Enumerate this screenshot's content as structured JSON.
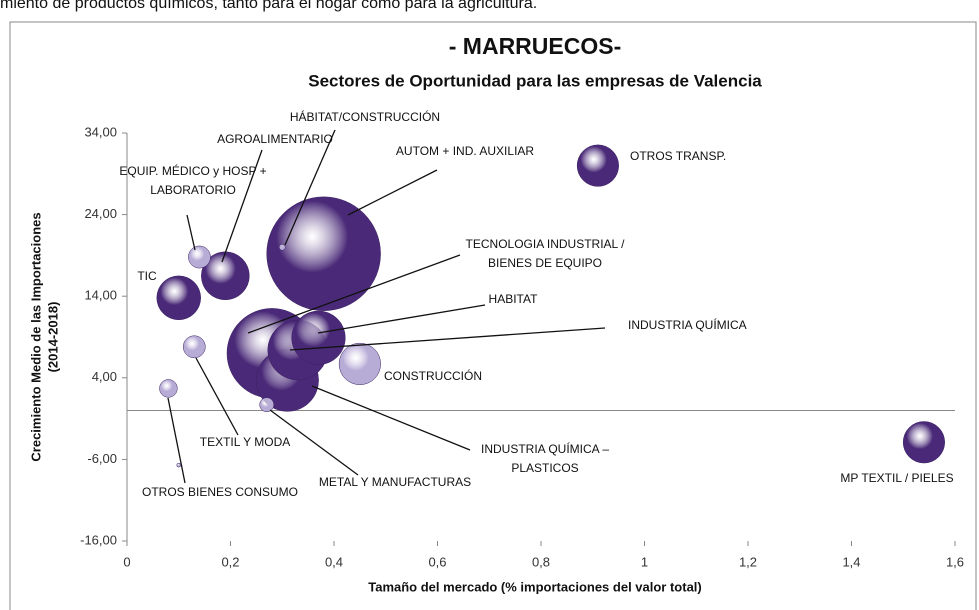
{
  "intro": "miento de productos químicos, tanto para el hogar como para la agricultura.",
  "chart_data": {
    "type": "bubble",
    "title": "- MARRUECOS-",
    "subtitle": "Sectores de Oportunidad para las empresas de Valencia",
    "x_label": "Tamaño del mercado (% importaciones del valor total)",
    "y_label": [
      "Crecimiento Medio de las Importaciones",
      "(2014-2018)"
    ],
    "xlim": [
      0,
      1.6
    ],
    "xticks": [
      0,
      {
        "value": 0.2,
        "label": "0,2"
      },
      {
        "value": 0.4,
        "label": "0,4"
      },
      {
        "value": 0.6,
        "label": "0,6"
      },
      {
        "value": 0.8,
        "label": "0,8"
      },
      1,
      {
        "value": 1.2,
        "label": "1,2"
      },
      {
        "value": 1.4,
        "label": "1,4"
      },
      {
        "value": 1.6,
        "label": "1,6"
      }
    ],
    "ylim": [
      -16,
      34
    ],
    "yticks": [
      {
        "value": -16,
        "label": "-16,00"
      },
      {
        "value": -6,
        "label": "-6,00"
      },
      {
        "value": 4,
        "label": "4,00"
      },
      {
        "value": 14,
        "label": "14,00"
      },
      {
        "value": 24,
        "label": "24,00"
      },
      {
        "value": 34,
        "label": "34,00"
      }
    ],
    "series": [
      {
        "labels": [
          [
            "OTROS TRANSP."
          ],
          [
            "MP TEXTIL / PIELES"
          ],
          [
            "AUTOM + IND. AUXILIAR"
          ],
          [
            "HÁBITAT/CONSTRUCCIÓN"
          ],
          [
            "AGROALIMENTARIO"
          ],
          [
            "EQUIP. MÉDICO y HOSP +",
            "LABORATORIO"
          ],
          [
            "TIC"
          ],
          [
            "TECNOLOGIA INDUSTRIAL /",
            "BIENES DE EQUIPO"
          ],
          [
            "HABITAT"
          ],
          [
            "INDUSTRIA QUÍMICA"
          ],
          [
            "CONSTRUCCIÓN"
          ],
          [
            "INDUSTRIA QUÍMICA –",
            "PLASTICOS"
          ],
          [
            "METAL Y MANUFACTURAS"
          ],
          [
            "TEXTIL Y MODA"
          ],
          [
            "OTROS BIENES CONSUMO"
          ],
          null
        ],
        "x": [
          0.91,
          1.54,
          0.38,
          0.3,
          0.19,
          0.14,
          0.1,
          0.28,
          0.37,
          0.33,
          0.45,
          0.31,
          0.27,
          0.13,
          0.08,
          0.1
        ],
        "y": [
          30,
          -3.9,
          19.2,
          20.0,
          16.5,
          18.8,
          13.8,
          7.0,
          8.9,
          7.4,
          5.7,
          3.7,
          0.7,
          7.8,
          2.7,
          -6.7
        ],
        "sizes": [
          12,
          12,
          90,
          0.25,
          16,
          3.4,
          13.4,
          56,
          20,
          25,
          12,
          27,
          1.4,
          3.4,
          2.2,
          0.1
        ],
        "colors": [
          "#4a2a78",
          "#4a2a78",
          "#4a2a78",
          "#b7acd6",
          "#4a2a78",
          "#b7acd6",
          "#4a2a78",
          "#4a2a78",
          "#4a2a78",
          "#4a2a78",
          "#b7acd6",
          "#4a2a78",
          "#b7acd6",
          "#b7acd6",
          "#b7acd6",
          "#b7acd6"
        ]
      }
    ]
  }
}
